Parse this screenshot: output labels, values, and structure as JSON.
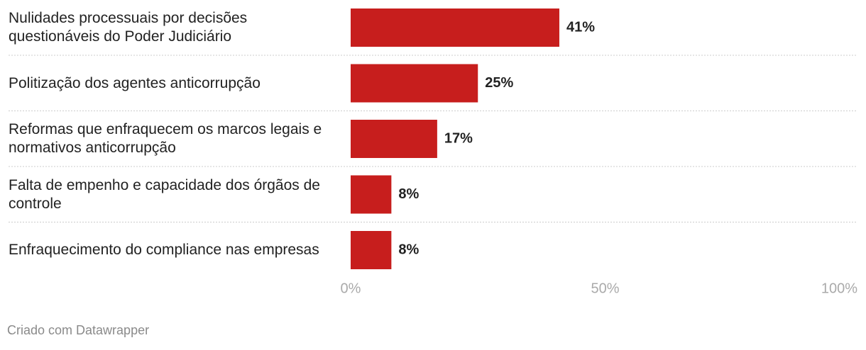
{
  "chart_data": {
    "type": "bar",
    "orientation": "horizontal",
    "categories": [
      "Nulidades processuais por decisões questionáveis do Poder Judiciário",
      "Politização dos agentes anticorrupção",
      "Reformas que enfraquecem os marcos legais e normativos anticorrupção",
      "Falta de empenho e capacidade dos órgãos de controle",
      "Enfraquecimento do compliance nas empresas"
    ],
    "values": [
      41,
      25,
      17,
      8,
      8
    ],
    "value_labels": [
      "41%",
      "25%",
      "17%",
      "8%",
      "8%"
    ],
    "color": "#c71e1d",
    "xlim": [
      0,
      100
    ],
    "xticks": [
      {
        "value": 0,
        "label": "0%"
      },
      {
        "value": 50,
        "label": "50%"
      },
      {
        "value": 100,
        "label": "100%"
      }
    ],
    "credit": "Criado com Datawrapper"
  }
}
